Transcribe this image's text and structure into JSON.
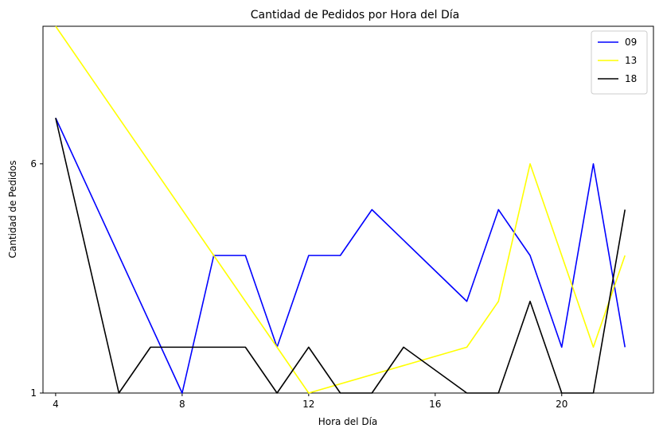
{
  "chart_data": {
    "type": "line",
    "title": "Cantidad de Pedidos por Hora del Día",
    "xlabel": "Hora del Día",
    "ylabel": "Cantidad de Pedidos",
    "xlim": [
      3.6,
      22.9
    ],
    "ylim": [
      1,
      9
    ],
    "xticks": [
      4,
      8,
      12,
      16,
      20
    ],
    "yticks": [
      1,
      6
    ],
    "grid": false,
    "legend_position": "top-right",
    "series": [
      {
        "name": "09",
        "color": "#0000ff",
        "points": [
          [
            4,
            7
          ],
          [
            8,
            1
          ],
          [
            9,
            4
          ],
          [
            10,
            4
          ],
          [
            11,
            2
          ],
          [
            12,
            4
          ],
          [
            13,
            4
          ],
          [
            14,
            5
          ],
          [
            17,
            3
          ],
          [
            18,
            5
          ],
          [
            19,
            4
          ],
          [
            20,
            2
          ],
          [
            21,
            6
          ],
          [
            22,
            2
          ]
        ]
      },
      {
        "name": "13",
        "color": "#ffff00",
        "points": [
          [
            4,
            9
          ],
          [
            11,
            2
          ],
          [
            12,
            1
          ],
          [
            17,
            2
          ],
          [
            18,
            3
          ],
          [
            19,
            6
          ],
          [
            21,
            2
          ],
          [
            22,
            4
          ]
        ]
      },
      {
        "name": "18",
        "color": "#000000",
        "points": [
          [
            4,
            7
          ],
          [
            6,
            1
          ],
          [
            7,
            2
          ],
          [
            10,
            2
          ],
          [
            11,
            1
          ],
          [
            12,
            2
          ],
          [
            13,
            1
          ],
          [
            14,
            1
          ],
          [
            15,
            2
          ],
          [
            17,
            1
          ],
          [
            18,
            1
          ],
          [
            19,
            3
          ],
          [
            20,
            1
          ],
          [
            21,
            1
          ],
          [
            22,
            5
          ]
        ]
      }
    ]
  }
}
